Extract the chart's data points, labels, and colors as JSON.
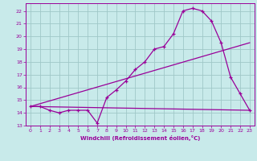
{
  "xlabel": "Windchill (Refroidissement éolien,°C)",
  "background_color": "#c8eaea",
  "grid_color": "#a0c8c8",
  "line_color": "#990099",
  "xlim": [
    -0.5,
    23.5
  ],
  "ylim": [
    13.0,
    22.6
  ],
  "yticks": [
    13,
    14,
    15,
    16,
    17,
    18,
    19,
    20,
    21,
    22
  ],
  "xticks": [
    0,
    1,
    2,
    3,
    4,
    5,
    6,
    7,
    8,
    9,
    10,
    11,
    12,
    13,
    14,
    15,
    16,
    17,
    18,
    19,
    20,
    21,
    22,
    23
  ],
  "curve1_x": [
    0,
    1,
    2,
    3,
    4,
    5,
    6,
    7,
    8,
    9,
    10,
    11,
    12,
    13,
    14,
    15,
    16,
    17,
    18,
    19,
    20,
    21,
    22,
    23
  ],
  "curve1_y": [
    14.5,
    14.5,
    14.2,
    14.0,
    14.2,
    14.2,
    14.2,
    13.2,
    15.2,
    15.8,
    16.5,
    17.4,
    18.0,
    19.0,
    19.2,
    20.2,
    22.0,
    22.2,
    22.0,
    21.2,
    19.5,
    16.8,
    15.5,
    14.2
  ],
  "curve2_x": [
    0,
    23
  ],
  "curve2_y": [
    14.5,
    14.2
  ],
  "curve3_x": [
    0,
    23
  ],
  "curve3_y": [
    14.5,
    19.5
  ]
}
